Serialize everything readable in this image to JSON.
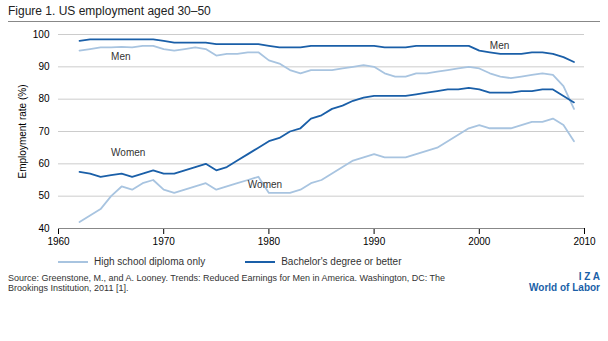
{
  "chart_data": {
    "type": "line",
    "title": "Figure 1. US employment aged 30–50",
    "y_label": "Employment rate (%)",
    "source": "Source: Greenstone, M., and A. Looney. Trends: Reduced Earnings for Men in America. Washington, DC: The\nBrookings Institution, 2011 [1].",
    "credit": "I Z A\nWorld of Labor",
    "xlim": [
      1960,
      2010
    ],
    "ylim": [
      40,
      100
    ],
    "xticks": [
      1960,
      1970,
      1980,
      1990,
      2000,
      2010
    ],
    "yticks": [
      40,
      50,
      60,
      70,
      80,
      90,
      100
    ],
    "grid": true,
    "legend": "bottom",
    "x": [
      1962,
      1963,
      1964,
      1965,
      1966,
      1967,
      1968,
      1969,
      1970,
      1971,
      1972,
      1973,
      1974,
      1975,
      1976,
      1977,
      1978,
      1979,
      1980,
      1981,
      1982,
      1983,
      1984,
      1985,
      1986,
      1987,
      1988,
      1989,
      1990,
      1991,
      1992,
      1993,
      1994,
      1995,
      1996,
      1997,
      1998,
      1999,
      2000,
      2001,
      2002,
      2003,
      2004,
      2005,
      2006,
      2007,
      2008,
      2009
    ],
    "series": [
      {
        "name": "High school diploma only",
        "color": "#a8c4e0",
        "values": [
          95,
          95.5,
          96,
          96,
          96.2,
          96,
          96.5,
          96.5,
          95.5,
          95,
          95.5,
          96,
          95.5,
          93.5,
          94,
          94,
          94.5,
          94.5,
          92,
          91,
          89,
          88,
          89,
          89,
          89,
          89.5,
          90,
          90.5,
          90,
          88,
          87,
          87,
          88,
          88,
          88.5,
          89,
          89.5,
          90,
          89.5,
          88,
          87,
          86.5,
          87,
          87.5,
          88,
          87.5,
          84,
          77
        ]
      },
      {
        "name": "Bachelor's degree or better",
        "color": "#1a5fa8",
        "values": [
          98,
          98.5,
          98.5,
          98.5,
          98.5,
          98.5,
          98.5,
          98.5,
          98,
          97.5,
          97.5,
          97.5,
          97.5,
          97,
          97,
          97,
          97,
          97,
          96.5,
          96,
          96,
          96,
          96.5,
          96.5,
          96.5,
          96.5,
          96.5,
          96.5,
          96.5,
          96,
          96,
          96,
          96.5,
          96.5,
          96.5,
          96.5,
          96.5,
          96.5,
          95,
          94.5,
          94,
          94,
          94,
          94.5,
          94.5,
          94,
          93,
          91.5
        ]
      },
      {
        "name": "High school diploma only",
        "color": "#a8c4e0",
        "values": [
          42,
          44,
          46,
          50,
          53,
          52,
          54,
          55,
          52,
          51,
          52,
          53,
          54,
          52,
          53,
          54,
          55,
          56,
          51,
          51,
          51,
          52,
          54,
          55,
          57,
          59,
          61,
          62,
          63,
          62,
          62,
          62,
          63,
          64,
          65,
          67,
          69,
          71,
          72,
          71,
          71,
          71,
          72,
          73,
          73,
          74,
          72,
          67
        ]
      },
      {
        "name": "Bachelor's degree or better",
        "color": "#1a5fa8",
        "values": [
          57.5,
          57,
          56,
          56.5,
          57,
          56,
          57,
          58,
          57,
          57,
          58,
          59,
          60,
          58,
          59,
          61,
          63,
          65,
          67,
          68,
          70,
          71,
          74,
          75,
          77,
          78,
          79.5,
          80.5,
          81,
          81,
          81,
          81,
          81.5,
          82,
          82.5,
          83,
          83,
          83.5,
          83,
          82,
          82,
          82,
          82.5,
          82.5,
          83,
          83,
          81,
          79
        ]
      }
    ],
    "annotations": [
      {
        "text": "Men",
        "x": 1965,
        "y": 92
      },
      {
        "text": "Men",
        "x": 2001,
        "y": 95.5
      },
      {
        "text": "Women",
        "x": 1965,
        "y": 62.5
      },
      {
        "text": "Women",
        "x": 1978,
        "y": 52.5
      }
    ]
  }
}
